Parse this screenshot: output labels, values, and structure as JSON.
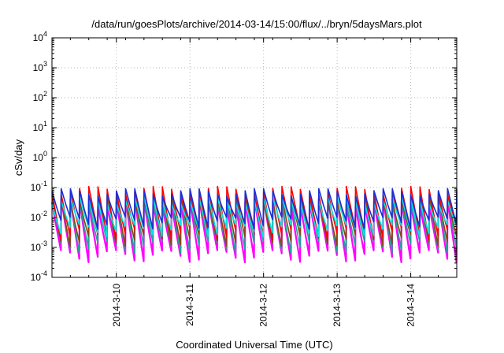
{
  "chart_data": {
    "type": "line",
    "title": "/data/run/goesPlots/archive/2014-03-14/15:00/flux/../bryn/5daysMars.plot",
    "xlabel": "Coordinated Universal Time (UTC)",
    "ylabel": "cSv/day",
    "yscale": "log",
    "ylim": [
      0.0001,
      10000
    ],
    "y_ticks": [
      {
        "value": 0.0001,
        "base": "10",
        "exp": "-4"
      },
      {
        "value": 0.001,
        "base": "10",
        "exp": "-3"
      },
      {
        "value": 0.01,
        "base": "10",
        "exp": "-2"
      },
      {
        "value": 0.1,
        "base": "10",
        "exp": "-1"
      },
      {
        "value": 1,
        "base": "10",
        "exp": "0"
      },
      {
        "value": 10,
        "base": "10",
        "exp": "1"
      },
      {
        "value": 100,
        "base": "10",
        "exp": "2"
      },
      {
        "value": 1000,
        "base": "10",
        "exp": "3"
      },
      {
        "value": 10000,
        "base": "10",
        "exp": "4"
      }
    ],
    "x_unit": "days",
    "xlim": [
      "2014-03-09 03:00",
      "2014-03-14 15:00"
    ],
    "x_ticks": [
      "2014-3-10",
      "2014-3-11",
      "2014-3-12",
      "2014-3-13",
      "2014-3-14"
    ],
    "grid": true,
    "sawtooth_period_hours": 3,
    "series": [
      {
        "color": "#ff00ff",
        "peak": 0.038,
        "trough": 0.0007
      },
      {
        "color": "#1fa39a",
        "peak": 0.05,
        "trough": 0.0014
      },
      {
        "color": "#8b4513",
        "peak": 0.055,
        "trough": 0.0024
      },
      {
        "color": "#ff0000",
        "peak": 0.1,
        "trough": 0.004
      },
      {
        "color": "#00e5e5",
        "peak": 0.045,
        "trough": 0.005
      },
      {
        "color": "#1a2fd6",
        "peak": 0.085,
        "trough": 0.009
      }
    ]
  }
}
